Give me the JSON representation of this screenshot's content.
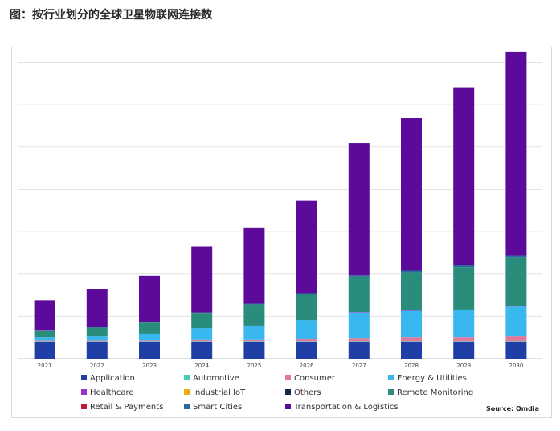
{
  "title": "图：按行业划分的全球卫星物联网连接数",
  "source": "Source: Omdia",
  "chart_data": {
    "type": "bar",
    "stacked": true,
    "categories": [
      "2021",
      "2022",
      "2023",
      "2024",
      "2025",
      "2026",
      "2027",
      "2028",
      "2029",
      "2030"
    ],
    "ylim": [
      0,
      36
    ],
    "grid": true,
    "legend_position": "bottom",
    "series": [
      {
        "name": "Application",
        "color": "#1f3fa6",
        "values": [
          2.0,
          2.0,
          2.0,
          2.0,
          2.0,
          2.0,
          2.0,
          2.0,
          2.0,
          2.0
        ]
      },
      {
        "name": "Automotive",
        "color": "#3fd0c0",
        "values": [
          0.05,
          0.05,
          0.05,
          0.05,
          0.05,
          0.05,
          0.05,
          0.05,
          0.05,
          0.05
        ]
      },
      {
        "name": "Consumer",
        "color": "#e07a9a",
        "values": [
          0.1,
          0.1,
          0.1,
          0.15,
          0.15,
          0.3,
          0.4,
          0.5,
          0.5,
          0.6
        ]
      },
      {
        "name": "Energy & Utilities",
        "color": "#38b8ee",
        "values": [
          0.4,
          0.5,
          0.8,
          1.4,
          1.7,
          2.2,
          3.0,
          3.1,
          3.2,
          3.5
        ]
      },
      {
        "name": "Healthcare",
        "color": "#9b30c8",
        "values": [
          0.0,
          0.0,
          0.0,
          0.0,
          0.0,
          0.0,
          0.05,
          0.05,
          0.05,
          0.05
        ]
      },
      {
        "name": "Industrial IoT",
        "color": "#f0a818",
        "values": [
          0.0,
          0.0,
          0.0,
          0.0,
          0.0,
          0.0,
          0.0,
          0.0,
          0.0,
          0.0
        ]
      },
      {
        "name": "Others",
        "color": "#14284a",
        "values": [
          0.0,
          0.0,
          0.0,
          0.0,
          0.0,
          0.0,
          0.0,
          0.0,
          0.0,
          0.0
        ]
      },
      {
        "name": "Remote Monitoring",
        "color": "#2a8c7a",
        "values": [
          0.7,
          1.0,
          1.3,
          1.8,
          2.5,
          3.0,
          4.2,
          4.5,
          5.0,
          5.7
        ]
      },
      {
        "name": "Retail & Payments",
        "color": "#c0163c",
        "values": [
          0.0,
          0.0,
          0.0,
          0.0,
          0.0,
          0.0,
          0.0,
          0.0,
          0.0,
          0.0
        ]
      },
      {
        "name": "Smart Cities",
        "color": "#2a6a9a",
        "values": [
          0.05,
          0.05,
          0.05,
          0.05,
          0.1,
          0.1,
          0.15,
          0.2,
          0.25,
          0.3
        ]
      },
      {
        "name": "Transportation & Logistics",
        "color": "#5c0a99",
        "values": [
          3.6,
          4.5,
          5.5,
          7.8,
          9.0,
          11.0,
          15.6,
          18.0,
          21.0,
          24.0
        ]
      }
    ]
  }
}
